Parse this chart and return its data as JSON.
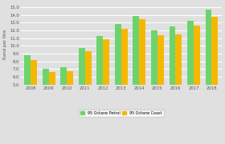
{
  "years": [
    "2008",
    "2009",
    "2010",
    "2011",
    "2012",
    "2013",
    "2014",
    "2015",
    "2016",
    "2017",
    "2018"
  ],
  "petrol_inland": [
    8.8,
    7.0,
    7.2,
    9.7,
    11.3,
    12.8,
    13.9,
    12.0,
    12.5,
    13.2,
    14.7
  ],
  "petrol_coast": [
    8.2,
    6.6,
    6.7,
    9.3,
    10.9,
    12.2,
    13.4,
    11.4,
    11.5,
    12.6,
    13.8
  ],
  "color_inland": "#6dd46d",
  "color_coast": "#f5b800",
  "bg_color": "#e0e0e0",
  "grid_color": "#ffffff",
  "ylabel": "Rand per litre",
  "ylim_min": 5.0,
  "ylim_max": 15.5,
  "yticks": [
    5.0,
    6.0,
    7.0,
    8.0,
    9.0,
    10.0,
    11.0,
    12.0,
    13.0,
    14.0,
    15.0
  ],
  "legend_inland": "95 Octane Petrol",
  "legend_coast": "95 Octane Coast",
  "bar_width": 0.35
}
